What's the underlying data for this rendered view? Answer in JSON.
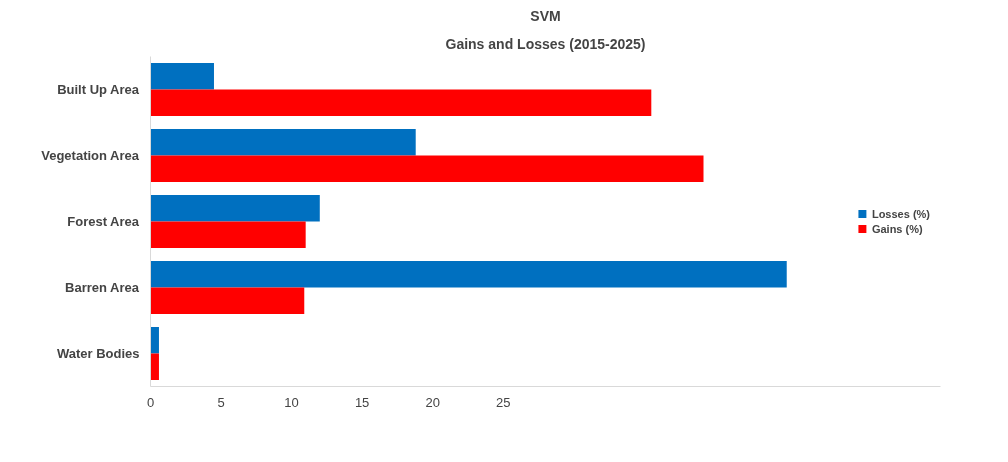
{
  "chart_data": {
    "type": "bar",
    "orientation": "horizontal",
    "title": "SVM",
    "subtitle": "Gains and Losses (2015-2025)",
    "categories": [
      "Built Up Area",
      "Vegetation Area",
      "Forest Area",
      "Barren Area",
      "Water Bodies"
    ],
    "series": [
      {
        "name": "Losses (%)",
        "color": "#0070c0",
        "values": [
          4.5,
          18.8,
          12.0,
          45.1,
          0.6
        ]
      },
      {
        "name": "Gains (%)",
        "color": "#ff0000",
        "values": [
          35.5,
          39.2,
          11.0,
          10.9,
          0.6
        ]
      }
    ],
    "xlim": [
      0,
      56
    ],
    "xticks": [
      0,
      5,
      10,
      15,
      20,
      25
    ],
    "grid": false,
    "legend": "right"
  }
}
